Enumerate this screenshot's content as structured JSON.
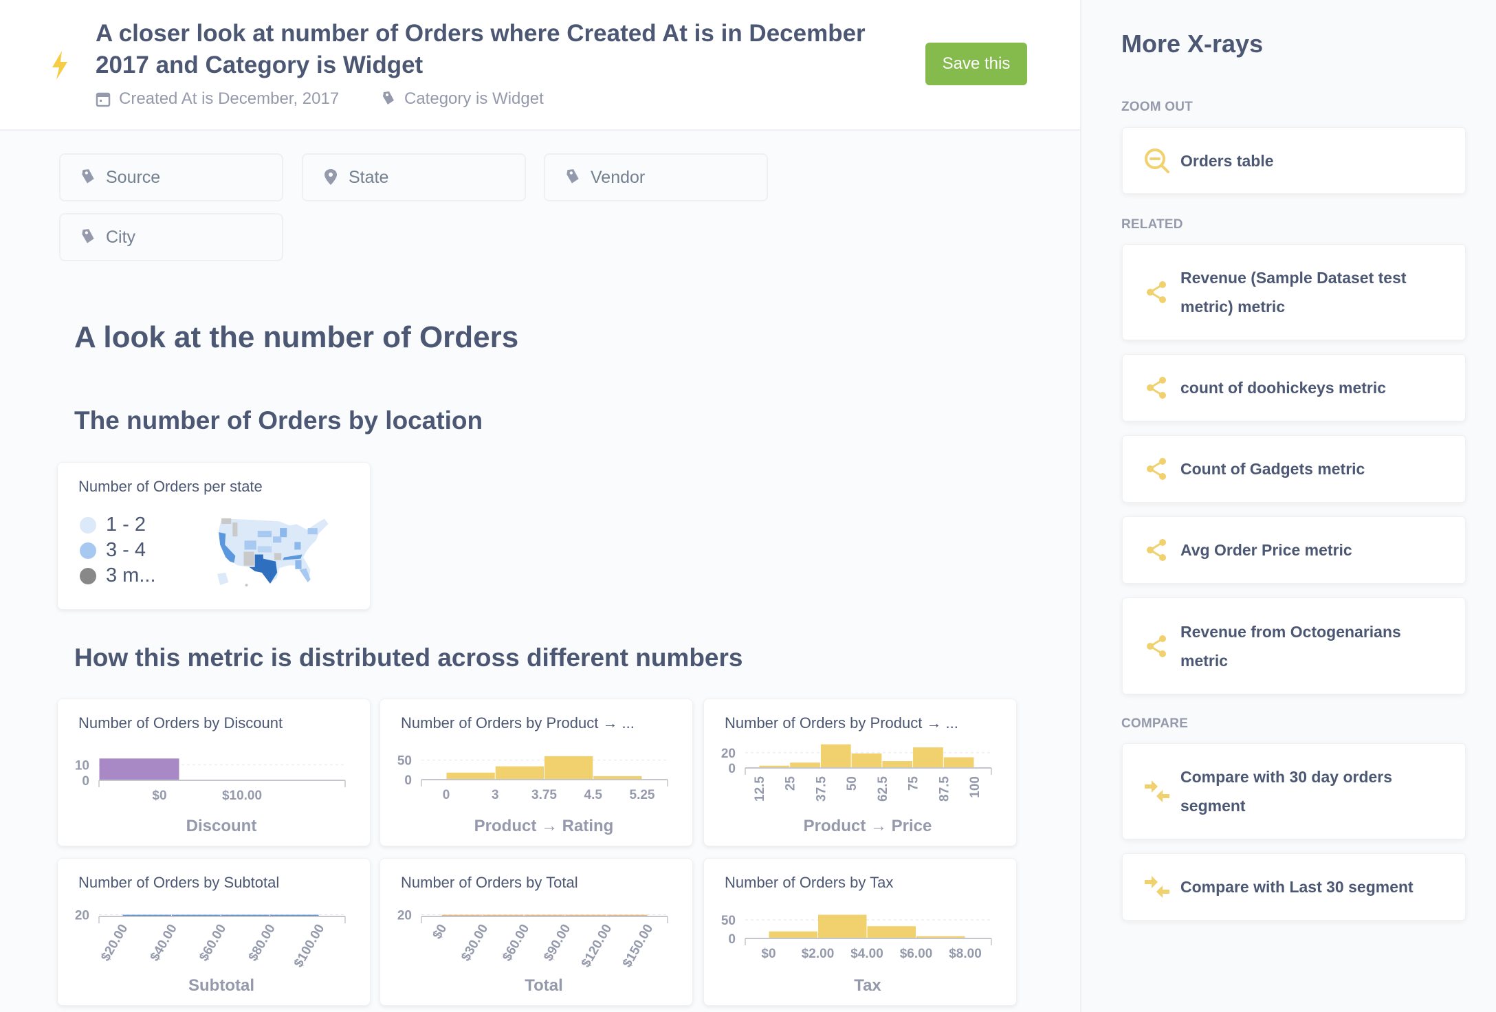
{
  "header": {
    "title": "A closer look at number of Orders where Created At is in December 2017 and Category is Widget",
    "filters": [
      {
        "icon": "calendar-icon",
        "label": "Created At is December, 2017"
      },
      {
        "icon": "tag-icon",
        "label": "Category is Widget"
      }
    ],
    "save_label": "Save this"
  },
  "dimension_buttons": [
    {
      "icon": "tag-icon",
      "label": "Source"
    },
    {
      "icon": "location-pin-icon",
      "label": "State"
    },
    {
      "icon": "tag-icon",
      "label": "Vendor"
    },
    {
      "icon": "tag-icon",
      "label": "City"
    }
  ],
  "main": {
    "heading": "A look at the number of Orders",
    "section_location": "The number of Orders by location",
    "section_numbers": "How this metric is distributed across different numbers"
  },
  "map_card": {
    "title": "Number of Orders per state",
    "legend": [
      {
        "label": "1 - 2",
        "color": "#dce9f8"
      },
      {
        "label": "3 - 4",
        "color": "#a7c8f0"
      },
      {
        "label": "3 m...",
        "color": "#888888"
      }
    ]
  },
  "chart_data": [
    {
      "type": "bar",
      "title": "Number of Orders by Discount",
      "xlabel": "Discount",
      "color": "#a989c5",
      "yticks": [
        "0",
        "10"
      ],
      "ytick_values": [
        0,
        10
      ],
      "ylim": [
        0,
        15
      ],
      "xticks": [
        "$0",
        "$10.00"
      ],
      "values": [
        14,
        0
      ]
    },
    {
      "type": "bar",
      "title": "Number of Orders by Product → ...",
      "xlabel": "Product → Rating",
      "color": "#f1d06e",
      "yticks": [
        "0",
        "50"
      ],
      "ytick_values": [
        0,
        50
      ],
      "ylim": [
        0,
        65
      ],
      "xticks": [
        "0",
        "3",
        "3.75",
        "4.5",
        "5.25"
      ],
      "values": [
        18,
        34,
        60,
        9
      ]
    },
    {
      "type": "bar",
      "title": "Number of Orders by Product → ...",
      "xlabel": "Product → Price",
      "color": "#f1d06e",
      "yticks": [
        "0",
        "20"
      ],
      "ytick_values": [
        0,
        20
      ],
      "ylim": [
        0,
        65
      ],
      "xticks": [
        "12.5",
        "25",
        "37.5",
        "50",
        "62.5",
        "75",
        "87.5",
        "100"
      ],
      "values": [
        3,
        7,
        31,
        19,
        9,
        27,
        14
      ]
    },
    {
      "type": "bar",
      "title": "Number of Orders by Subtotal",
      "xlabel": "Subtotal",
      "color": "#5a8ed6",
      "yticks": [
        "20"
      ],
      "ytick_values": [
        20
      ],
      "ylim": [
        0,
        20
      ],
      "xticks": [
        "$20.00",
        "$40.00",
        "$60.00",
        "$80.00",
        "$100.00"
      ],
      "values": [
        19,
        19,
        19,
        19
      ]
    },
    {
      "type": "bar",
      "title": "Number of Orders by Total",
      "xlabel": "Total",
      "color": "#e9b77c",
      "yticks": [
        "20"
      ],
      "ytick_values": [
        20
      ],
      "ylim": [
        0,
        20
      ],
      "xticks": [
        "$0",
        "$30.00",
        "$60.00",
        "$90.00",
        "$120.00",
        "$150.00"
      ],
      "values": [
        19,
        19,
        19,
        19,
        19
      ]
    },
    {
      "type": "bar",
      "title": "Number of Orders by Tax",
      "xlabel": "Tax",
      "color": "#f1d06e",
      "yticks": [
        "0",
        "50"
      ],
      "ytick_values": [
        0,
        50
      ],
      "ylim": [
        0,
        65
      ],
      "xticks": [
        "$0",
        "$2.00",
        "$4.00",
        "$6.00",
        "$8.00"
      ],
      "values": [
        19,
        64,
        33,
        6
      ]
    }
  ],
  "sidebar": {
    "title": "More X-rays",
    "zoom_out_label": "ZOOM OUT",
    "zoom_out": [
      {
        "icon": "zoom-out-icon",
        "label": "Orders table"
      }
    ],
    "related_label": "RELATED",
    "related": [
      {
        "icon": "share-icon",
        "label": "Revenue (Sample Dataset test metric) metric"
      },
      {
        "icon": "share-icon",
        "label": "count of doohickeys metric"
      },
      {
        "icon": "share-icon",
        "label": "Count of Gadgets metric"
      },
      {
        "icon": "share-icon",
        "label": "Avg Order Price metric"
      },
      {
        "icon": "share-icon",
        "label": "Revenue from Octogenarians metric"
      }
    ],
    "compare_label": "COMPARE",
    "compare": [
      {
        "icon": "compare-icon",
        "label": "Compare with 30 day orders segment"
      },
      {
        "icon": "compare-icon",
        "label": "Compare with Last 30 segment"
      }
    ]
  },
  "colors": {
    "accent_yellow": "#f1d06e",
    "save_green": "#84bb4c",
    "text": "#4c5773",
    "muted": "#949aab"
  }
}
